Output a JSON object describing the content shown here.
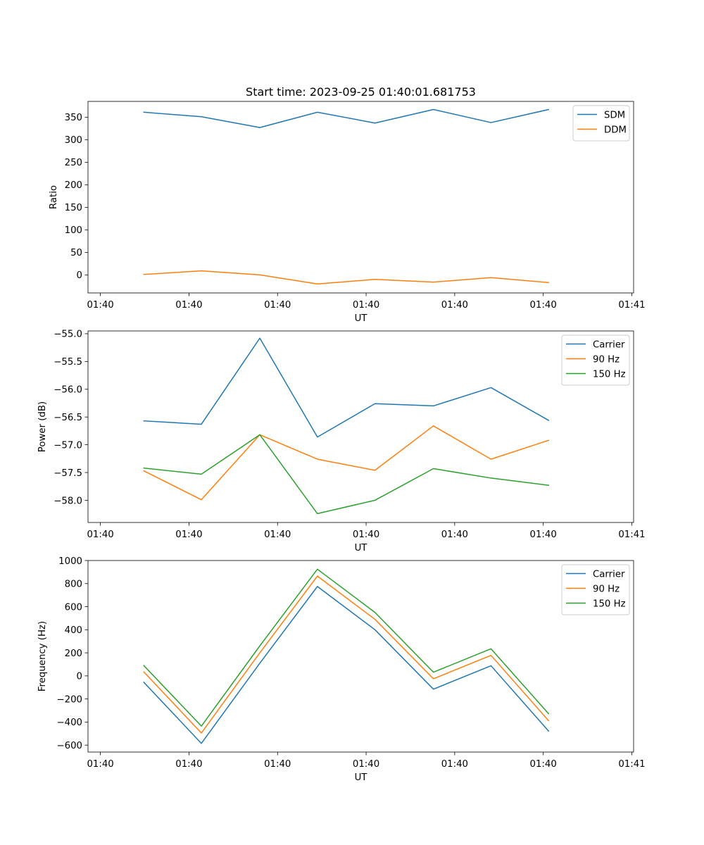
{
  "figure": {
    "title": "Start time: 2023-09-25 01:40:01.681753",
    "colors": {
      "C0": "#1f77b4",
      "C1": "#ff7f0e",
      "C2": "#2ca02c"
    }
  },
  "chart_data": [
    {
      "type": "line",
      "title": "Start time: 2023-09-25 01:40:01.681753",
      "xlabel": "UT",
      "ylabel": "Ratio",
      "x_tick_labels": [
        "01:40",
        "01:40",
        "01:40",
        "01:40",
        "01:40",
        "01:40",
        "01:41"
      ],
      "x_ticks": [
        0,
        1,
        2,
        3,
        4,
        5,
        6
      ],
      "xlim": [
        -0.14,
        6.02
      ],
      "x": [
        0.49,
        1.14,
        1.8,
        2.45,
        3.1,
        3.76,
        4.41,
        5.06
      ],
      "ylim": [
        -40,
        385
      ],
      "y_ticks": [
        0,
        50,
        100,
        150,
        200,
        250,
        300,
        350
      ],
      "y_tick_labels": [
        "0",
        "50",
        "100",
        "150",
        "200",
        "250",
        "300",
        "350"
      ],
      "legend_position": "top-right",
      "series": [
        {
          "name": "SDM",
          "color": "#1f77b4",
          "values": [
            361,
            351,
            327,
            361,
            337,
            367,
            338,
            367
          ]
        },
        {
          "name": "DDM",
          "color": "#ff7f0e",
          "values": [
            1,
            9,
            0,
            -20,
            -10,
            -16,
            -6,
            -17
          ]
        }
      ]
    },
    {
      "type": "line",
      "title": "",
      "xlabel": "UT",
      "ylabel": "Power (dB)",
      "x_tick_labels": [
        "01:40",
        "01:40",
        "01:40",
        "01:40",
        "01:40",
        "01:40",
        "01:41"
      ],
      "x_ticks": [
        0,
        1,
        2,
        3,
        4,
        5,
        6
      ],
      "xlim": [
        -0.14,
        6.02
      ],
      "x": [
        0.49,
        1.14,
        1.8,
        2.45,
        3.1,
        3.76,
        4.41,
        5.06
      ],
      "ylim": [
        -58.4,
        -54.95
      ],
      "y_ticks": [
        -58.0,
        -57.5,
        -57.0,
        -56.5,
        -56.0,
        -55.5,
        -55.0
      ],
      "y_tick_labels": [
        "−58.0",
        "−57.5",
        "−57.0",
        "−56.5",
        "−56.0",
        "−55.5",
        "−55.0"
      ],
      "legend_position": "top-right",
      "series": [
        {
          "name": "Carrier",
          "color": "#1f77b4",
          "values": [
            -56.57,
            -56.63,
            -55.08,
            -56.86,
            -56.26,
            -56.3,
            -55.97,
            -56.56
          ]
        },
        {
          "name": "90 Hz",
          "color": "#ff7f0e",
          "values": [
            -57.47,
            -57.99,
            -56.82,
            -57.26,
            -57.46,
            -56.66,
            -57.26,
            -56.92
          ]
        },
        {
          "name": "150 Hz",
          "color": "#2ca02c",
          "values": [
            -57.42,
            -57.53,
            -56.82,
            -58.24,
            -58.0,
            -57.43,
            -57.6,
            -57.73
          ]
        }
      ]
    },
    {
      "type": "line",
      "title": "",
      "xlabel": "UT",
      "ylabel": "Frequency (Hz)",
      "x_tick_labels": [
        "01:40",
        "01:40",
        "01:40",
        "01:40",
        "01:40",
        "01:40",
        "01:41"
      ],
      "x_ticks": [
        0,
        1,
        2,
        3,
        4,
        5,
        6
      ],
      "xlim": [
        -0.14,
        6.02
      ],
      "x": [
        0.49,
        1.14,
        1.8,
        2.45,
        3.1,
        3.76,
        4.41,
        5.06
      ],
      "ylim": [
        -660,
        1000
      ],
      "y_ticks": [
        -600,
        -400,
        -200,
        0,
        200,
        400,
        600,
        800,
        1000
      ],
      "y_tick_labels": [
        "−600",
        "−400",
        "−200",
        "0",
        "200",
        "400",
        "600",
        "800",
        "1000"
      ],
      "legend_position": "top-right",
      "series": [
        {
          "name": "Carrier",
          "color": "#1f77b4",
          "values": [
            -55,
            -585,
            110,
            775,
            400,
            -115,
            88,
            -478
          ]
        },
        {
          "name": "90 Hz",
          "color": "#ff7f0e",
          "values": [
            35,
            -495,
            200,
            865,
            490,
            -25,
            178,
            -388
          ]
        },
        {
          "name": "150 Hz",
          "color": "#2ca02c",
          "values": [
            90,
            -435,
            260,
            925,
            550,
            32,
            235,
            -328
          ]
        }
      ]
    }
  ]
}
